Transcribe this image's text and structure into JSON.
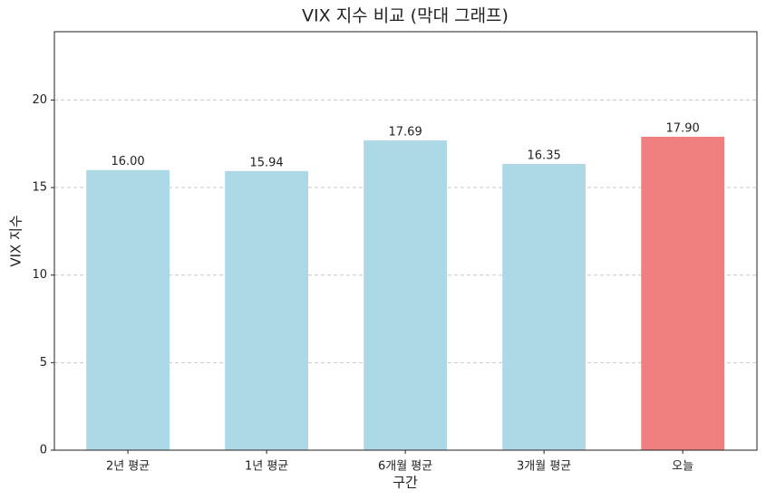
{
  "chart_data": {
    "type": "bar",
    "title": "VIX 지수 비교 (막대 그래프)",
    "x_label": "구간",
    "y_label": "VIX 지수",
    "categories": [
      "2년 평균",
      "1년 평균",
      "6개월 평균",
      "3개월 평균",
      "오늘"
    ],
    "values": [
      16.0,
      15.94,
      17.69,
      16.35,
      17.9
    ],
    "value_labels": [
      "16.00",
      "15.94",
      "17.69",
      "16.35",
      "17.90"
    ],
    "colors": [
      "#add8e6",
      "#add8e6",
      "#add8e6",
      "#add8e6",
      "#f08080"
    ],
    "ylim": [
      0,
      23.9
    ],
    "yticks": [
      0,
      5,
      10,
      15,
      20
    ],
    "grid": true
  }
}
